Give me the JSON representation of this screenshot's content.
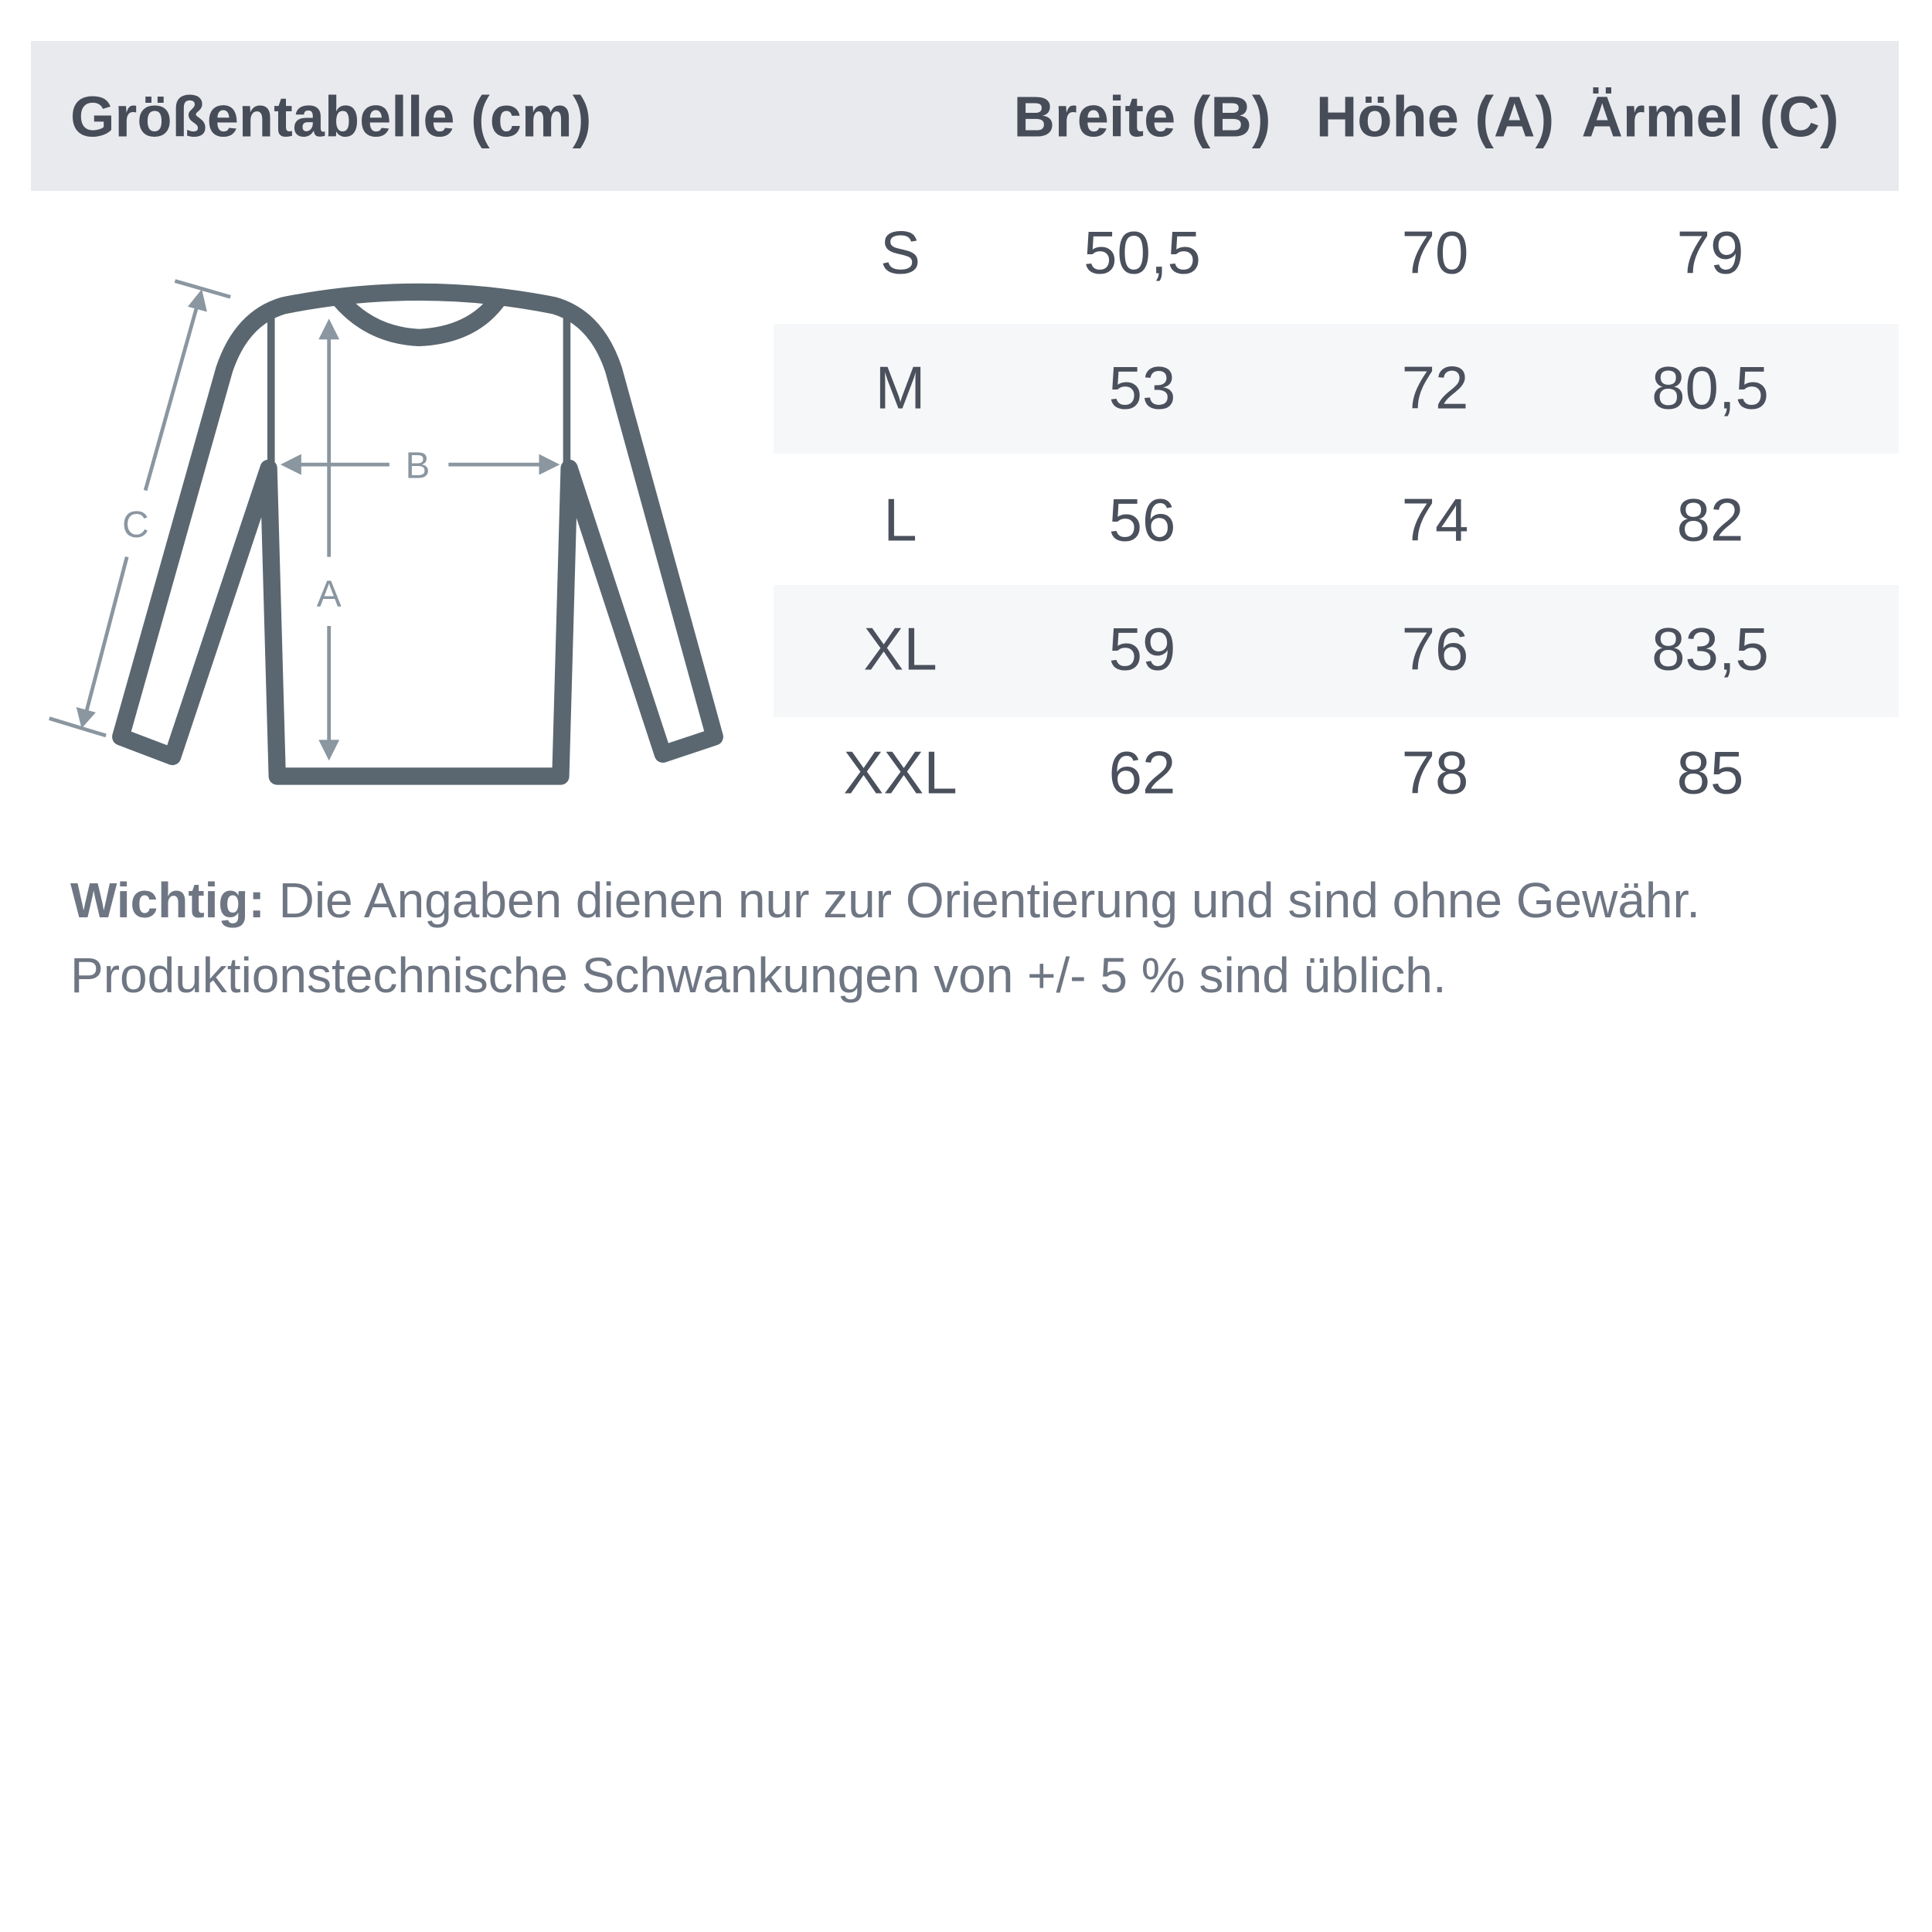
{
  "header": {
    "title": "Größentabelle (cm)",
    "columns": [
      "Breite (B)",
      "Höhe (A)",
      "Ärmel (C)"
    ]
  },
  "diagram": {
    "labels": {
      "width": "B",
      "height": "A",
      "sleeve": "C"
    },
    "icon": "long-sleeve-shirt-outline"
  },
  "table": {
    "rows": [
      {
        "size": "S",
        "breite": "50,5",
        "hoehe": "70",
        "aermel": "79"
      },
      {
        "size": "M",
        "breite": "53",
        "hoehe": "72",
        "aermel": "80,5"
      },
      {
        "size": "L",
        "breite": "56",
        "hoehe": "74",
        "aermel": "82"
      },
      {
        "size": "XL",
        "breite": "59",
        "hoehe": "76",
        "aermel": "83,5"
      },
      {
        "size": "XXL",
        "breite": "62",
        "hoehe": "78",
        "aermel": "85"
      }
    ]
  },
  "note": {
    "label": "Wichtig:",
    "line1": "Die Angaben dienen nur zur Orientierung und sind ohne Gewähr.",
    "line2": "Produktionstechnische Schwankungen von +/- 5 % sind üblich."
  },
  "colors": {
    "header_bg": "#e9eaee",
    "stripe": "#f6f7f9",
    "outline": "#5a6770",
    "measure": "#8a96a0",
    "text": "#464c58"
  }
}
